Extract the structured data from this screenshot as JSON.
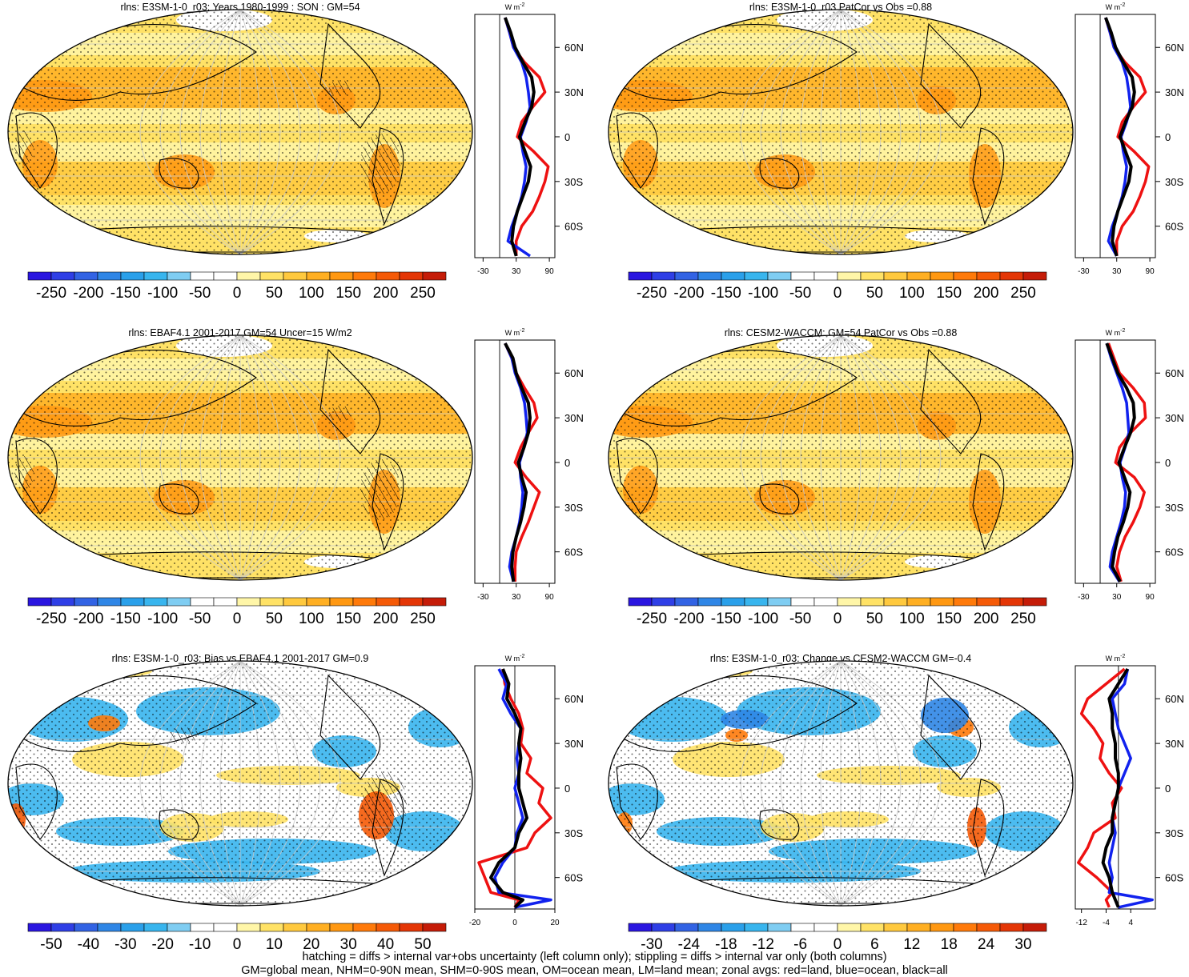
{
  "footer": {
    "line1": "hatching = diffs > internal var+obs uncertainty (left column only); stippling = diffs > internal var only (both columns)",
    "line2": "GM=global mean, NHM=0-90N mean, SHM=0-90S mean, OM=ocean mean, LM=land mean; zonal avgs: red=land, blue=ocean, black=all"
  },
  "colors": {
    "land": "#ee1111",
    "ocean": "#1122ee",
    "all": "#000000",
    "coast": "#000000",
    "grid": "#c8c8c8"
  },
  "zonal_unit": "W m",
  "zonal_unit_sup": "-2",
  "lat_labels": [
    "60N",
    "30N",
    "0",
    "30S",
    "60S"
  ],
  "abs_palette": [
    "#2a16e0",
    "#2f3fe6",
    "#3263e4",
    "#2f86e6",
    "#2aa0ea",
    "#38b5ee",
    "#7fcdf2",
    "#ffffff",
    "#ffffff",
    "#fff6a8",
    "#ffe266",
    "#ffc93e",
    "#ffaf22",
    "#ff9812",
    "#ff7a0a",
    "#f55a07",
    "#e43606",
    "#c51c08"
  ],
  "bias_palette": [
    "#2a16e0",
    "#2f3fe6",
    "#3263e4",
    "#2f86e6",
    "#2aa0ea",
    "#38b5ee",
    "#7fcdf2",
    "#ffffff",
    "#ffffff",
    "#fff6a8",
    "#ffe266",
    "#ffc93e",
    "#ffaf22",
    "#ff9812",
    "#ff7a0a",
    "#f55a07",
    "#e43606",
    "#c51c08"
  ],
  "chart_data": [
    {
      "type": "heatmap",
      "title": "rlns: E3SM-1-0_r03: Years 1980-1999 : SON : GM=54",
      "map_kind": "abs",
      "stipple": true,
      "hatch": true,
      "colorbar_ticks": [
        "-250",
        "-200",
        "-150",
        "-100",
        "-50",
        "0",
        "50",
        "100",
        "150",
        "200",
        "250"
      ],
      "zonal": {
        "type": "line",
        "x_ticks": [
          "-30",
          "30",
          "90"
        ],
        "xlim": [
          -45,
          100
        ],
        "ref_line_x": 0,
        "lat": [
          80,
          70,
          60,
          50,
          40,
          30,
          20,
          10,
          0,
          -10,
          -20,
          -30,
          -40,
          -50,
          -60,
          -70,
          -80
        ],
        "series": [
          {
            "color_key": "land",
            "values": [
              10,
              18,
              25,
              45,
              72,
              82,
              60,
              40,
              32,
              62,
              88,
              82,
              72,
              60,
              40,
              30,
              30
            ]
          },
          {
            "color_key": "ocean",
            "values": [
              10,
              18,
              25,
              40,
              48,
              52,
              55,
              48,
              38,
              42,
              48,
              45,
              40,
              32,
              22,
              15,
              55
            ]
          },
          {
            "color_key": "all",
            "values": [
              10,
              20,
              28,
              42,
              58,
              62,
              58,
              46,
              36,
              46,
              56,
              52,
              42,
              32,
              25,
              22,
              30
            ]
          }
        ]
      }
    },
    {
      "type": "heatmap",
      "title": "rlns: E3SM-1-0_r03 PatCor vs Obs =0.88",
      "map_kind": "abs",
      "stipple": true,
      "hatch": false,
      "colorbar_ticks": [
        "-250",
        "-200",
        "-150",
        "-100",
        "-50",
        "0",
        "50",
        "100",
        "150",
        "200",
        "250"
      ],
      "zonal": {
        "type": "line",
        "x_ticks": [
          "-30",
          "30",
          "90"
        ],
        "xlim": [
          -45,
          100
        ],
        "ref_line_x": 0,
        "lat": [
          80,
          70,
          60,
          50,
          40,
          30,
          20,
          10,
          0,
          -10,
          -20,
          -30,
          -40,
          -50,
          -60,
          -70,
          -80
        ],
        "series": [
          {
            "color_key": "land",
            "values": [
              10,
              18,
              25,
              45,
              72,
              82,
              60,
              40,
              32,
              62,
              88,
              82,
              72,
              60,
              40,
              30,
              30
            ]
          },
          {
            "color_key": "ocean",
            "values": [
              10,
              18,
              25,
              40,
              48,
              52,
              55,
              48,
              38,
              42,
              48,
              45,
              40,
              32,
              22,
              15,
              30
            ]
          },
          {
            "color_key": "all",
            "values": [
              10,
              20,
              28,
              42,
              58,
              62,
              58,
              46,
              36,
              46,
              56,
              52,
              42,
              32,
              25,
              22,
              30
            ]
          }
        ]
      }
    },
    {
      "type": "heatmap",
      "title": "rlns: EBAF4.1 2001-2017 GM=54 Uncer=15 W/m2",
      "map_kind": "abs",
      "stipple": true,
      "hatch": true,
      "colorbar_ticks": [
        "-250",
        "-200",
        "-150",
        "-100",
        "-50",
        "0",
        "50",
        "100",
        "150",
        "200",
        "250"
      ],
      "zonal": {
        "type": "line",
        "x_ticks": [
          "-30",
          "30",
          "90"
        ],
        "xlim": [
          -45,
          100
        ],
        "ref_line_x": 0,
        "lat": [
          80,
          70,
          60,
          50,
          40,
          30,
          20,
          10,
          0,
          -10,
          -20,
          -30,
          -40,
          -50,
          -60,
          -70,
          -80
        ],
        "series": [
          {
            "color_key": "land",
            "values": [
              10,
              22,
              30,
              45,
              62,
              68,
              52,
              38,
              28,
              48,
              72,
              62,
              52,
              40,
              30,
              28,
              28
            ]
          },
          {
            "color_key": "ocean",
            "values": [
              10,
              22,
              28,
              38,
              45,
              48,
              50,
              44,
              36,
              38,
              42,
              40,
              36,
              30,
              22,
              18,
              25
            ]
          },
          {
            "color_key": "all",
            "values": [
              10,
              24,
              30,
              40,
              52,
              55,
              52,
              44,
              34,
              40,
              48,
              44,
              38,
              30,
              24,
              22,
              25
            ]
          }
        ]
      }
    },
    {
      "type": "heatmap",
      "title": "rlns: CESM2-WACCM: GM=54 PatCor vs Obs =0.88",
      "map_kind": "abs",
      "stipple": true,
      "hatch": false,
      "colorbar_ticks": [
        "-250",
        "-200",
        "-150",
        "-100",
        "-50",
        "0",
        "50",
        "100",
        "150",
        "200",
        "250"
      ],
      "zonal": {
        "type": "line",
        "x_ticks": [
          "-30",
          "30",
          "90"
        ],
        "xlim": [
          -45,
          100
        ],
        "ref_line_x": 0,
        "lat": [
          80,
          70,
          60,
          50,
          40,
          30,
          20,
          10,
          0,
          -10,
          -20,
          -30,
          -40,
          -50,
          -60,
          -70,
          -80
        ],
        "series": [
          {
            "color_key": "land",
            "values": [
              15,
              25,
              35,
              60,
              80,
              82,
              55,
              35,
              28,
              62,
              80,
              72,
              60,
              45,
              35,
              30,
              38
            ]
          },
          {
            "color_key": "ocean",
            "values": [
              12,
              20,
              30,
              40,
              48,
              50,
              52,
              45,
              36,
              40,
              46,
              44,
              38,
              30,
              22,
              18,
              35
            ]
          },
          {
            "color_key": "all",
            "values": [
              12,
              22,
              32,
              48,
              60,
              62,
              55,
              44,
              34,
              44,
              54,
              50,
              42,
              32,
              26,
              22,
              36
            ]
          }
        ]
      }
    },
    {
      "type": "heatmap",
      "title": "rlns: E3SM-1-0_r03: Bias vs EBAF4.1 2001-2017  GM=0.9",
      "map_kind": "bias",
      "stipple": true,
      "hatch": true,
      "colorbar_ticks": [
        "-50",
        "-40",
        "-30",
        "-20",
        "-10",
        "0",
        "10",
        "20",
        "30",
        "40",
        "50"
      ],
      "zonal": {
        "type": "line",
        "x_ticks": [
          "-20",
          "0",
          "20"
        ],
        "xlim": [
          -20,
          20
        ],
        "ref_line_x": 0,
        "lat": [
          80,
          70,
          60,
          50,
          40,
          30,
          20,
          10,
          0,
          -10,
          -20,
          -30,
          -40,
          -50,
          -60,
          -70,
          -75,
          -80
        ],
        "series": [
          {
            "color_key": "land",
            "values": [
              -6,
              -5,
              -2,
              2,
              4,
              3,
              8,
              6,
              14,
              12,
              18,
              10,
              6,
              -18,
              -15,
              -12,
              2,
              0
            ]
          },
          {
            "color_key": "ocean",
            "values": [
              -8,
              -4,
              -6,
              -2,
              3,
              2,
              1,
              2,
              0,
              2,
              4,
              1,
              0,
              -6,
              -10,
              -8,
              18,
              0
            ]
          },
          {
            "color_key": "all",
            "values": [
              -6,
              -3,
              -4,
              0,
              3,
              2,
              3,
              2,
              2,
              4,
              6,
              2,
              0,
              -8,
              -12,
              -6,
              4,
              0
            ]
          }
        ]
      }
    },
    {
      "type": "heatmap",
      "title": "rlns: E3SM-1-0_r03: Change vs CESM2-WACCM GM=-0.4",
      "map_kind": "change",
      "stipple": true,
      "hatch": false,
      "colorbar_ticks": [
        "-30",
        "-24",
        "-18",
        "-12",
        "-6",
        "0",
        "6",
        "12",
        "18",
        "24",
        "30"
      ],
      "zonal": {
        "type": "line",
        "x_ticks": [
          "-12",
          "-4",
          "4"
        ],
        "xlim": [
          -14,
          12
        ],
        "ref_line_x": 0,
        "lat": [
          80,
          70,
          60,
          50,
          40,
          30,
          20,
          10,
          0,
          -10,
          -20,
          -30,
          -40,
          -50,
          -60,
          -70,
          -75,
          -80
        ],
        "series": [
          {
            "color_key": "land",
            "values": [
              2,
              -4,
              -10,
              -12,
              -8,
              -5,
              -6,
              -3,
              1,
              -2,
              -1,
              -8,
              -10,
              -13,
              -7,
              -2,
              -4,
              -3
            ]
          },
          {
            "color_key": "ocean",
            "values": [
              3,
              2,
              -2,
              -1,
              0,
              2,
              4,
              2,
              0,
              -1,
              -2,
              -1,
              -2,
              -3,
              -2,
              -3,
              11,
              0
            ]
          },
          {
            "color_key": "all",
            "values": [
              3,
              0,
              -3,
              -2,
              -2,
              -1,
              -1,
              0,
              0,
              -1,
              -2,
              -2,
              -4,
              -5,
              -3,
              -2,
              -1,
              0
            ]
          }
        ]
      }
    }
  ]
}
